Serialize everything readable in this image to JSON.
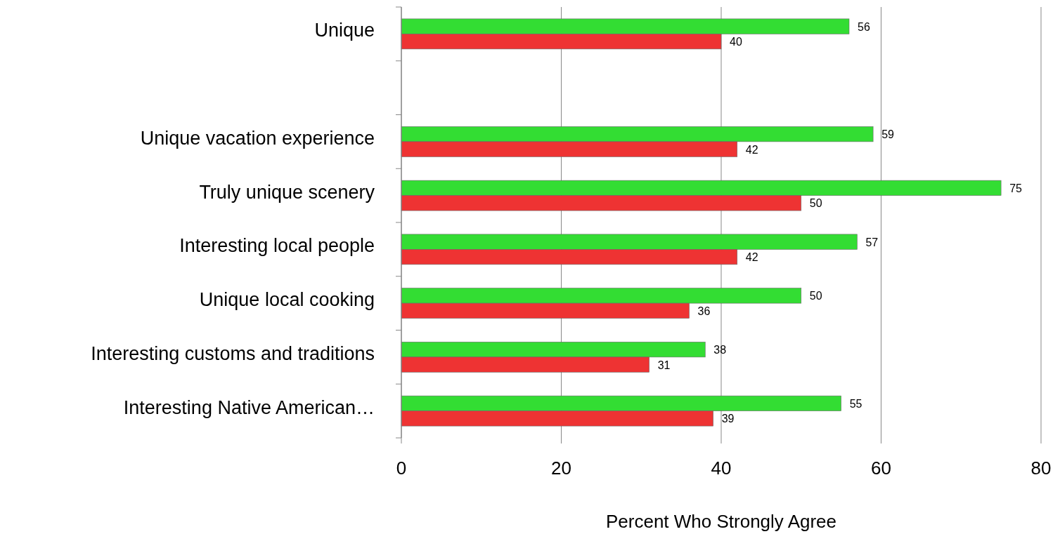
{
  "chart_data": {
    "type": "bar",
    "orientation": "horizontal",
    "xlabel": "Percent Who Strongly Agree",
    "categories": [
      "Unique",
      null,
      "Unique vacation experience",
      "Truly unique scenery",
      "Interesting local people",
      "Unique local cooking",
      "Interesting customs and traditions",
      "Interesting Native American…"
    ],
    "series": [
      {
        "color": "#33dd33",
        "values": [
          56,
          null,
          59,
          75,
          57,
          50,
          38,
          55
        ]
      },
      {
        "color": "#ee3333",
        "values": [
          40,
          null,
          42,
          50,
          42,
          36,
          31,
          39
        ]
      }
    ],
    "xlim": [
      0,
      80
    ],
    "xticks": [
      0,
      20,
      40,
      60,
      80
    ],
    "grid": "x",
    "data_labels": true
  }
}
